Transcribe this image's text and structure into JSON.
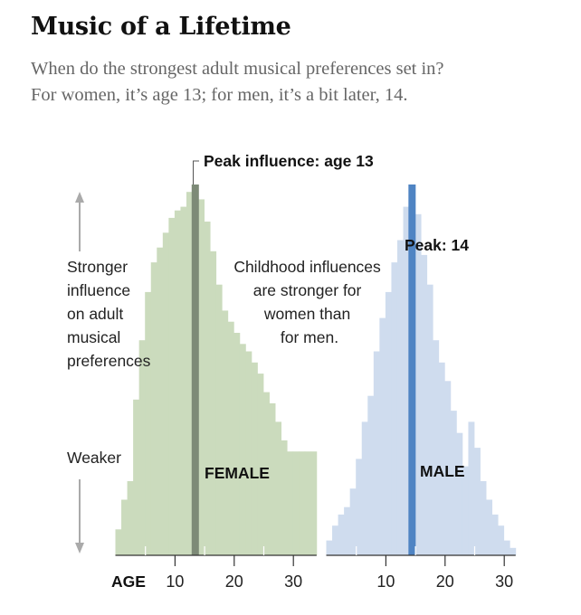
{
  "header": {
    "title": "Music of a Lifetime",
    "subtitle_line1": "When do the strongest adult musical preferences set in?",
    "subtitle_line2": "For women, it’s age 13; for men, it’s a bit later, 14."
  },
  "annotations": {
    "peak_female": "Peak influence: age 13",
    "peak_male": "Peak: 14",
    "stronger_lines": [
      "Stronger",
      "influence",
      "on adult",
      "musical",
      "preferences"
    ],
    "weaker": "Weaker",
    "childhood_lines": [
      "Childhood influences",
      "are stronger for",
      "women than",
      "for men."
    ]
  },
  "colors": {
    "female_fill": "#cbdbbd",
    "female_peak": "#7d8a77",
    "male_fill": "#cfdcee",
    "male_peak": "#4f84c3",
    "arrow": "#aaaaaa"
  },
  "chart_data": [
    {
      "type": "bar",
      "name": "FEMALE",
      "x_label": "AGE",
      "x": [
        0,
        1,
        2,
        3,
        4,
        5,
        6,
        7,
        8,
        9,
        10,
        11,
        12,
        13,
        14,
        15,
        16,
        17,
        18,
        19,
        20,
        21,
        22,
        23,
        24,
        25,
        26,
        27,
        28,
        29,
        30,
        31,
        32,
        33
      ],
      "values": [
        0.07,
        0.15,
        0.2,
        0.42,
        0.58,
        0.71,
        0.79,
        0.83,
        0.87,
        0.91,
        0.93,
        0.94,
        0.98,
        1.0,
        0.96,
        0.9,
        0.82,
        0.73,
        0.66,
        0.63,
        0.6,
        0.57,
        0.55,
        0.52,
        0.49,
        0.44,
        0.41,
        0.36,
        0.31,
        0.28,
        0.28,
        0.28,
        0.28,
        0.28
      ],
      "peak_age": 13,
      "x_ticks": [
        10,
        20,
        30
      ],
      "y_axis": "relative influence (Weaker → Stronger)"
    },
    {
      "type": "bar",
      "name": "MALE",
      "x_label": "AGE",
      "x": [
        0,
        1,
        2,
        3,
        4,
        5,
        6,
        7,
        8,
        9,
        10,
        11,
        12,
        13,
        14,
        15,
        16,
        17,
        18,
        19,
        20,
        21,
        22,
        23,
        24,
        25,
        26,
        27,
        28,
        29,
        30,
        31
      ],
      "values": [
        0.04,
        0.08,
        0.11,
        0.13,
        0.18,
        0.26,
        0.36,
        0.43,
        0.55,
        0.64,
        0.71,
        0.79,
        0.85,
        0.94,
        1.0,
        0.92,
        0.81,
        0.73,
        0.58,
        0.52,
        0.47,
        0.39,
        0.33,
        0.24,
        0.36,
        0.29,
        0.2,
        0.15,
        0.11,
        0.08,
        0.04,
        0.02
      ],
      "peak_age": 14,
      "x_ticks": [
        10,
        20,
        30
      ]
    }
  ]
}
